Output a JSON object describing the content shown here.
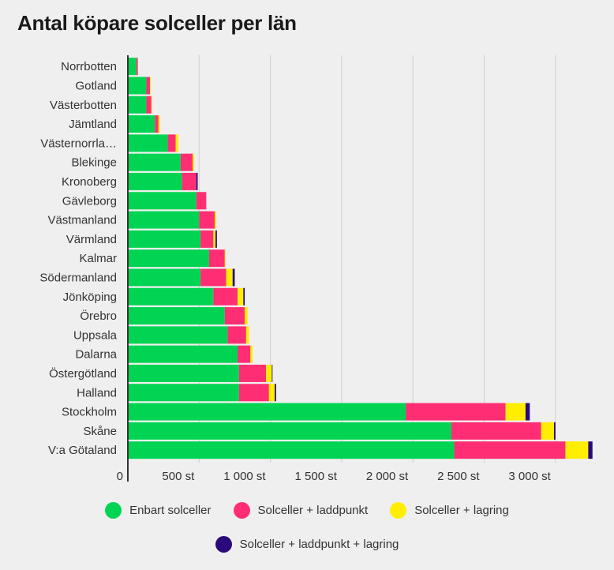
{
  "title": "Antal köpare solceller per län",
  "colors": {
    "enbart": "#00d452",
    "laddpunkt": "#ff2e74",
    "lagring": "#ffee00",
    "alla": "#2a0a7a",
    "grid": "#cfcfcf",
    "axis": "#333333"
  },
  "chart_data": {
    "type": "bar",
    "orientation": "horizontal",
    "stacked": true,
    "title": "Antal köpare solceller per län",
    "xlabel": "",
    "ylabel": "",
    "xlim": [
      0,
      3400
    ],
    "x_ticks": [
      0,
      500,
      1000,
      1500,
      2000,
      2500,
      3000
    ],
    "x_tick_labels": [
      "0",
      "500 st",
      "1 000 st",
      "1 500 st",
      "2 000 st",
      "2 500 st",
      "3 000 st"
    ],
    "grid": true,
    "legend_position": "bottom",
    "categories": [
      "Norrbotten",
      "Gotland",
      "Västerbotten",
      "Jämtland",
      "Västernorrla…",
      "Blekinge",
      "Kronoberg",
      "Gävleborg",
      "Västmanland",
      "Värmland",
      "Kalmar",
      "Södermanland",
      "Jönköping",
      "Örebro",
      "Uppsala",
      "Dalarna",
      "Östergötland",
      "Halland",
      "Stockholm",
      "Skåne",
      "V:a Götaland"
    ],
    "series": [
      {
        "name": "Enbart solceller",
        "values": [
          60,
          130,
          130,
          190,
          280,
          370,
          380,
          480,
          500,
          510,
          570,
          510,
          600,
          680,
          700,
          770,
          780,
          780,
          1950,
          2270,
          2290
        ]
      },
      {
        "name": "Solceller + laddpunkt",
        "values": [
          10,
          25,
          35,
          25,
          55,
          85,
          100,
          70,
          110,
          90,
          110,
          180,
          170,
          140,
          130,
          90,
          190,
          210,
          700,
          630,
          780
        ]
      },
      {
        "name": "Solceller + lagring",
        "values": [
          0,
          5,
          5,
          10,
          20,
          10,
          0,
          0,
          10,
          15,
          5,
          45,
          40,
          20,
          20,
          15,
          40,
          40,
          140,
          90,
          160
        ]
      },
      {
        "name": "Solceller + laddpunkt + lagring",
        "values": [
          0,
          0,
          0,
          0,
          0,
          0,
          10,
          0,
          0,
          10,
          0,
          15,
          10,
          0,
          0,
          0,
          5,
          10,
          30,
          10,
          30
        ]
      }
    ]
  },
  "legend": [
    {
      "label": "Enbart solceller",
      "color": "#00d452"
    },
    {
      "label": "Solceller + laddpunkt",
      "color": "#ff2e74"
    },
    {
      "label": "Solceller + lagring",
      "color": "#ffee00"
    },
    {
      "label": "Solceller + laddpunkt + lagring",
      "color": "#2a0a7a"
    }
  ]
}
